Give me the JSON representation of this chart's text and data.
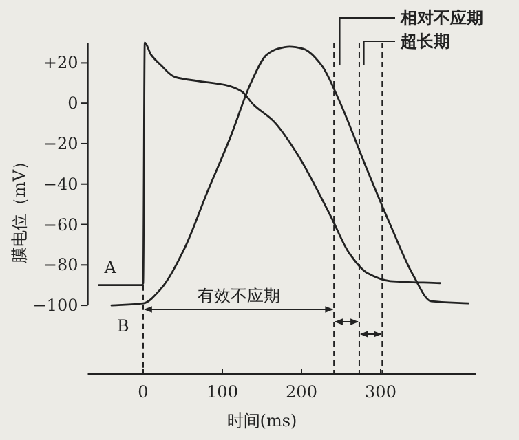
{
  "chart_data": {
    "type": "line",
    "xlabel": "时间(ms)",
    "ylabel": "膜电位（mV）",
    "xlim": [
      -70,
      420
    ],
    "xticks": [
      0,
      100,
      200,
      300
    ],
    "ylim": [
      -134,
      30
    ],
    "yticks": [
      {
        "value": 20,
        "label": "+20"
      },
      0,
      -20,
      -40,
      -60,
      -80,
      -100
    ],
    "series": [
      {
        "name": "A",
        "color": "#222222",
        "x": [
          -56,
          -2,
          0,
          2,
          10,
          22,
          40,
          69,
          104,
          124,
          140,
          165,
          196,
          237,
          260,
          283,
          312,
          375
        ],
        "values": [
          -90,
          -90,
          -89,
          30,
          24,
          19,
          13,
          11,
          9,
          6,
          -1,
          -9,
          -26,
          -56,
          -74,
          -84,
          -88,
          -89
        ]
      },
      {
        "name": "B",
        "color": "#222222",
        "x": [
          -40,
          0,
          22,
          52,
          81,
          110,
          136,
          156,
          170,
          185,
          202,
          225,
          248,
          283,
          312,
          341,
          364,
          411
        ],
        "values": [
          -100,
          -99,
          -92,
          -72,
          -44,
          -17,
          10,
          24,
          27,
          28,
          27,
          19,
          1,
          -33,
          -60,
          -85,
          -98,
          -99
        ]
      }
    ],
    "ref_lines": [
      {
        "axis": "x",
        "value": 0,
        "color": "#222222",
        "line_style": "dashed"
      },
      {
        "axis": "x",
        "value": 241,
        "color": "#222222",
        "line_style": "dashed"
      },
      {
        "axis": "x",
        "value": 273,
        "color": "#222222",
        "line_style": "dashed"
      },
      {
        "axis": "x",
        "value": 302,
        "color": "#222222",
        "line_style": "dashed"
      }
    ],
    "annotations": [
      "有效不应期",
      "相对不应期",
      "超长期"
    ]
  }
}
